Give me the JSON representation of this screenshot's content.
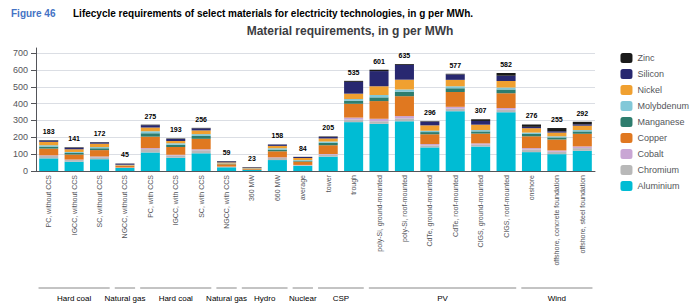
{
  "chart_data": {
    "type": "bar",
    "stacked": true,
    "title": "Material requirements, in g per MWh",
    "annotations": [
      "Figure 46",
      "Lifecycle requirements of select materials for electricity technologies, in g per MWh."
    ],
    "categories": [
      "PC, without CCS",
      "IGCC, without CCS",
      "SC, without CCS",
      "NGCC, without CCS",
      "PC, with CCS",
      "IGCC, with CCS",
      "SC, with CCS",
      "NGCC, with CCS",
      "360 MW",
      "660 MW",
      "average",
      "tower",
      "trough",
      "poly-Si, ground-mounted",
      "poly-Si, roof-mounted",
      "CdTe, ground-mounted",
      "CdTe, roof-mounted",
      "CIGS, ground-mounted",
      "CIGS, roof-mounted",
      "onshore",
      "offshore, concrete foundation",
      "offshore, steel foundation"
    ],
    "series": [
      {
        "name": "Aluminium",
        "color": "#00BCD4",
        "values": [
          75,
          55,
          70,
          18,
          110,
          78,
          105,
          22,
          8,
          65,
          30,
          85,
          290,
          280,
          295,
          140,
          355,
          145,
          348,
          112,
          100,
          120
        ]
      },
      {
        "name": "Chromium",
        "color": "#B8B8B8",
        "values": [
          14,
          10,
          12,
          2,
          20,
          14,
          18,
          3,
          0,
          12,
          4,
          12,
          15,
          15,
          17,
          12,
          15,
          11,
          15,
          16,
          14,
          16
        ]
      },
      {
        "name": "Cobalt",
        "color": "#C9A6D4",
        "values": [
          4,
          3,
          4,
          1,
          6,
          5,
          6,
          1,
          0,
          4,
          2,
          4,
          12,
          15,
          14,
          8,
          11,
          8,
          11,
          8,
          8,
          10
        ]
      },
      {
        "name": "Copper",
        "color": "#E07820",
        "values": [
          40,
          30,
          38,
          8,
          68,
          46,
          62,
          14,
          5,
          36,
          20,
          52,
          82,
          105,
          118,
          58,
          88,
          58,
          88,
          70,
          65,
          75
        ]
      },
      {
        "name": "Manganese",
        "color": "#2E7D6E",
        "values": [
          12,
          9,
          11,
          2,
          20,
          13,
          17,
          3,
          2,
          10,
          5,
          14,
          18,
          22,
          26,
          13,
          22,
          13,
          22,
          14,
          12,
          14
        ]
      },
      {
        "name": "Molybdenum",
        "color": "#82C8D8",
        "values": [
          8,
          6,
          7,
          1,
          12,
          8,
          11,
          2,
          1,
          8,
          4,
          8,
          10,
          14,
          14,
          8,
          12,
          8,
          12,
          8,
          7,
          8
        ]
      },
      {
        "name": "Nickel",
        "color": "#F0A030",
        "values": [
          20,
          16,
          20,
          5,
          22,
          14,
          22,
          6,
          4,
          14,
          12,
          18,
          32,
          52,
          58,
          32,
          38,
          32,
          38,
          26,
          22,
          26
        ]
      },
      {
        "name": "Silicon",
        "color": "#282870",
        "values": [
          7,
          9,
          8,
          6,
          14,
          12,
          12,
          6,
          2,
          8,
          6,
          9,
          70,
          90,
          88,
          22,
          32,
          22,
          32,
          8,
          8,
          8
        ]
      },
      {
        "name": "Zinc",
        "color": "#1A1A1A",
        "values": [
          3,
          3,
          2,
          2,
          3,
          3,
          3,
          2,
          1,
          1,
          1,
          3,
          6,
          8,
          5,
          3,
          4,
          10,
          16,
          14,
          19,
          15
        ]
      }
    ],
    "totals": [
      183,
      141,
      172,
      45,
      275,
      193,
      256,
      59,
      23,
      158,
      84,
      205,
      535,
      601,
      635,
      296,
      577,
      307,
      582,
      276,
      255,
      292
    ],
    "groups": [
      {
        "label": "Hard coal",
        "categories": [
          "PC, without CCS",
          "IGCC, without CCS",
          "SC, without CCS"
        ]
      },
      {
        "label": "Natural gas",
        "categories": [
          "NGCC, without CCS"
        ]
      },
      {
        "label": "Hard coal",
        "categories": [
          "PC, with CCS",
          "IGCC, with CCS",
          "SC, with CCS"
        ]
      },
      {
        "label": "Natural gas",
        "categories": [
          "NGCC, with CCS"
        ]
      },
      {
        "label": "Hydro",
        "categories": [
          "360 MW",
          "660 MW"
        ]
      },
      {
        "label": "Nuclear",
        "categories": [
          "average"
        ]
      },
      {
        "label": "CSP",
        "categories": [
          "tower",
          "trough"
        ]
      },
      {
        "label": "PV",
        "categories": [
          "poly-Si, ground-mounted",
          "poly-Si, roof-mounted",
          "CdTe, ground-mounted",
          "CdTe, roof-mounted",
          "CIGS, ground-mounted",
          "CIGS, roof-mounted"
        ]
      },
      {
        "label": "Wind",
        "categories": [
          "onshore",
          "offshore, concrete foundation",
          "offshore, steel foundation"
        ]
      }
    ],
    "ylim": [
      0,
      730
    ],
    "yticks": [
      0,
      100,
      200,
      300,
      400,
      500,
      600,
      700
    ],
    "grid": true,
    "legend": "upper right"
  }
}
